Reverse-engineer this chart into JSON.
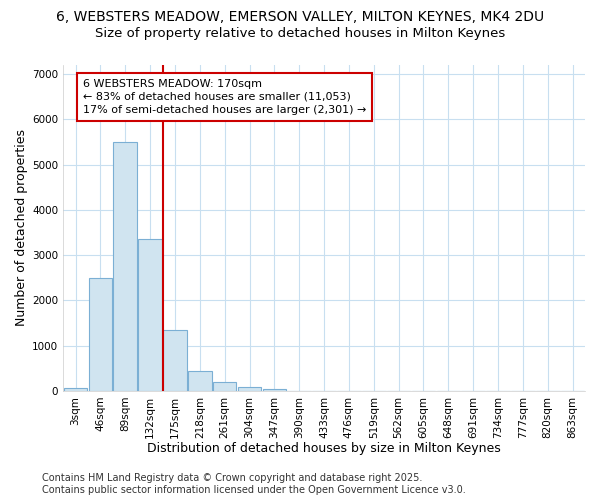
{
  "title_line1": "6, WEBSTERS MEADOW, EMERSON VALLEY, MILTON KEYNES, MK4 2DU",
  "title_line2": "Size of property relative to detached houses in Milton Keynes",
  "xlabel": "Distribution of detached houses by size in Milton Keynes",
  "ylabel": "Number of detached properties",
  "categories": [
    "3sqm",
    "46sqm",
    "89sqm",
    "132sqm",
    "175sqm",
    "218sqm",
    "261sqm",
    "304sqm",
    "347sqm",
    "390sqm",
    "433sqm",
    "476sqm",
    "519sqm",
    "562sqm",
    "605sqm",
    "648sqm",
    "691sqm",
    "734sqm",
    "777sqm",
    "820sqm",
    "863sqm"
  ],
  "values": [
    70,
    2500,
    5500,
    3350,
    1350,
    430,
    200,
    80,
    30,
    5,
    2,
    0,
    0,
    0,
    0,
    0,
    0,
    0,
    0,
    0,
    0
  ],
  "bar_color": "#d0e4f0",
  "bar_edge_color": "#7bafd4",
  "vline_x_index": 4,
  "vline_color": "#cc0000",
  "annotation_title": "6 WEBSTERS MEADOW: 170sqm",
  "annotation_line2": "← 83% of detached houses are smaller (11,053)",
  "annotation_line3": "17% of semi-detached houses are larger (2,301) →",
  "annotation_box_color": "#ffffff",
  "annotation_box_edge_color": "#cc0000",
  "ylim": [
    0,
    7200
  ],
  "yticks": [
    0,
    1000,
    2000,
    3000,
    4000,
    5000,
    6000,
    7000
  ],
  "background_color": "#ffffff",
  "grid_color": "#c8dff0",
  "footer_line1": "Contains HM Land Registry data © Crown copyright and database right 2025.",
  "footer_line2": "Contains public sector information licensed under the Open Government Licence v3.0.",
  "title_fontsize": 10,
  "subtitle_fontsize": 9.5,
  "axis_label_fontsize": 9,
  "tick_fontsize": 7.5,
  "annotation_fontsize": 8,
  "footer_fontsize": 7
}
